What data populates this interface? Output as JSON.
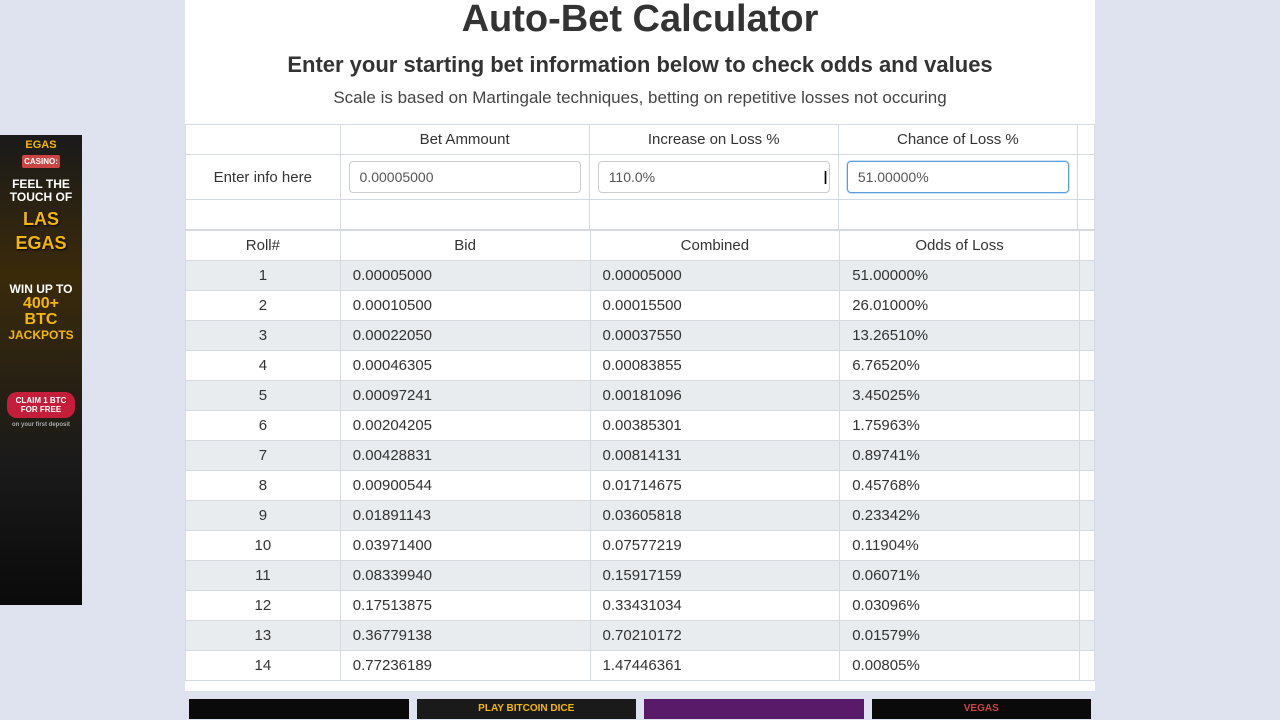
{
  "page": {
    "title": "Auto-Bet Calculator",
    "subtitle": "Enter your starting bet information below to check odds and values",
    "description": "Scale is based on Martingale techniques, betting on repetitive losses not occuring"
  },
  "input_headers": {
    "bet_amount": "Bet Ammount",
    "increase_loss": "Increase on Loss %",
    "chance_loss": "Chance of Loss %"
  },
  "info_label": "Enter info here",
  "inputs": {
    "bet_amount": "0.00005000",
    "increase_loss": "110.0%",
    "chance_loss": "51.00000%"
  },
  "table_headers": {
    "roll": "Roll#",
    "bid": "Bid",
    "combined": "Combined",
    "odds": "Odds of Loss"
  },
  "rows": [
    {
      "roll": "1",
      "bid": "0.00005000",
      "combined": "0.00005000",
      "odds": "51.00000%"
    },
    {
      "roll": "2",
      "bid": "0.00010500",
      "combined": "0.00015500",
      "odds": "26.01000%"
    },
    {
      "roll": "3",
      "bid": "0.00022050",
      "combined": "0.00037550",
      "odds": "13.26510%"
    },
    {
      "roll": "4",
      "bid": "0.00046305",
      "combined": "0.00083855",
      "odds": "6.76520%"
    },
    {
      "roll": "5",
      "bid": "0.00097241",
      "combined": "0.00181096",
      "odds": "3.45025%"
    },
    {
      "roll": "6",
      "bid": "0.00204205",
      "combined": "0.00385301",
      "odds": "1.75963%"
    },
    {
      "roll": "7",
      "bid": "0.00428831",
      "combined": "0.00814131",
      "odds": "0.89741%"
    },
    {
      "roll": "8",
      "bid": "0.00900544",
      "combined": "0.01714675",
      "odds": "0.45768%"
    },
    {
      "roll": "9",
      "bid": "0.01891143",
      "combined": "0.03605818",
      "odds": "0.23342%"
    },
    {
      "roll": "10",
      "bid": "0.03971400",
      "combined": "0.07577219",
      "odds": "0.11904%"
    },
    {
      "roll": "11",
      "bid": "0.08339940",
      "combined": "0.15917159",
      "odds": "0.06071%"
    },
    {
      "roll": "12",
      "bid": "0.17513875",
      "combined": "0.33431034",
      "odds": "0.03096%"
    },
    {
      "roll": "13",
      "bid": "0.36779138",
      "combined": "0.70210172",
      "odds": "0.01579%"
    },
    {
      "roll": "14",
      "bid": "0.77236189",
      "combined": "1.47446361",
      "odds": "0.00805%"
    }
  ],
  "left_ad": {
    "brand_top": "EGAS",
    "casino": "CASINO:",
    "feel": "FEEL THE TOUCH OF",
    "vegas1": "LAS",
    "vegas2": "EGAS",
    "winup": "WIN UP TO",
    "bonus1": "400+",
    "bonus2": "BTC",
    "jackpots": "JACKPOTS",
    "claim": "CLAIM 1 BTC FOR FREE",
    "deposit": "on your first deposit"
  },
  "bottom_ads": {
    "ad1": "",
    "ad2": "PLAY BITCOIN DICE",
    "ad3": "",
    "ad4": "VEGAS"
  },
  "colors": {
    "page_bg": "#dfe3f0",
    "panel_bg": "#ffffff",
    "row_alt": "#e8ecef",
    "border": "#d5d9e0",
    "input_focus": "#5b9dd9",
    "ad_gold": "#f5b800",
    "ad_red": "#c41e3a"
  }
}
